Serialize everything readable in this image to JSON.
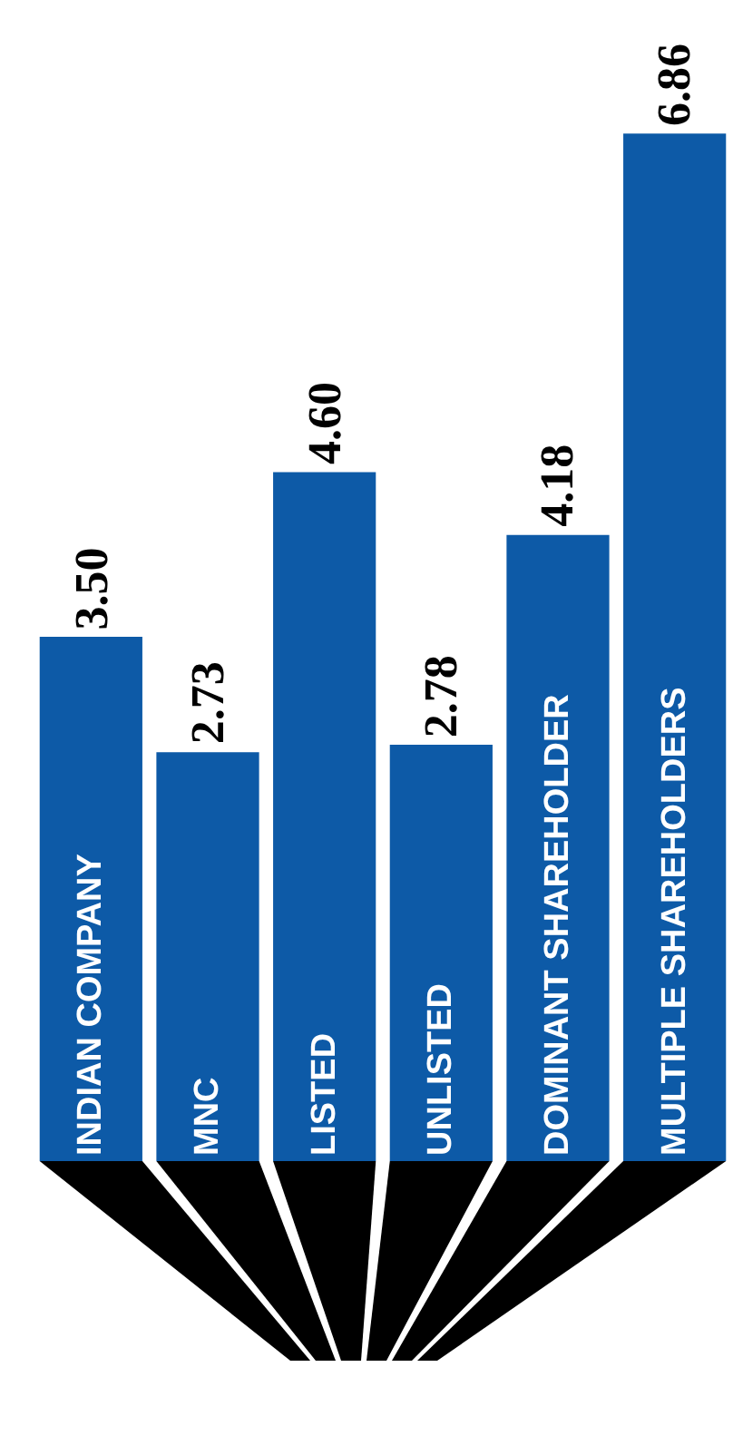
{
  "chart_data": {
    "type": "bar",
    "categories": [
      "INDIAN COMPANY",
      "MNC",
      "LISTED",
      "UNLISTED",
      "DOMINANT SHAREHOLDER",
      "MULTIPLE SHAREHOLDERS"
    ],
    "values": [
      3.5,
      2.73,
      4.6,
      2.78,
      4.18,
      6.86
    ],
    "value_labels": [
      "3.50",
      "2.73",
      "4.60",
      "2.78",
      "4.18",
      "6.86"
    ],
    "color": "#0d5aa7"
  }
}
